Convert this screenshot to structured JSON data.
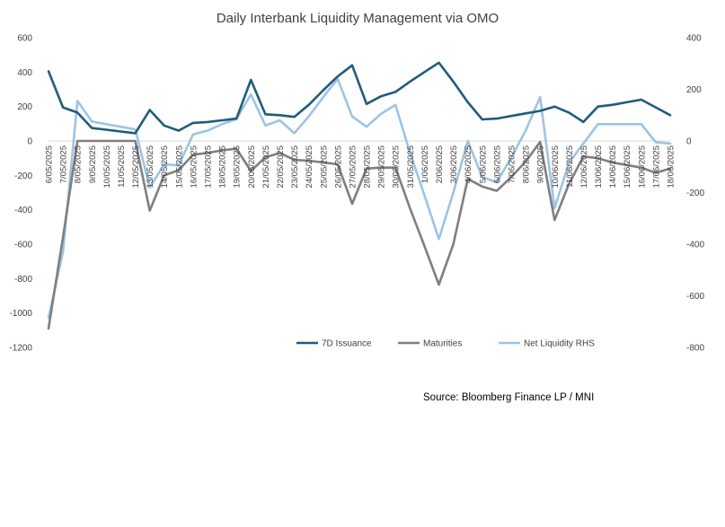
{
  "chart_data": {
    "type": "line",
    "title": "Daily Interbank Liquidity Management via OMO",
    "source": "Source: Bloomberg Finance LP / MNI",
    "categories": [
      "6/05/2025",
      "7/05/2025",
      "8/05/2025",
      "9/05/2025",
      "10/05/2025",
      "11/05/2025",
      "12/05/2025",
      "13/05/2025",
      "14/05/2025",
      "15/05/2025",
      "16/05/2025",
      "17/05/2025",
      "18/05/2025",
      "19/05/2025",
      "20/05/2025",
      "21/05/2025",
      "22/05/2025",
      "23/05/2025",
      "24/05/2025",
      "25/05/2025",
      "26/05/2025",
      "27/05/2025",
      "28/05/2025",
      "29/05/2025",
      "30/05/2025",
      "31/05/2025",
      "1/06/2025",
      "2/06/2025",
      "3/06/2025",
      "4/06/2025",
      "5/06/2025",
      "6/06/2025",
      "7/06/2025",
      "8/06/2025",
      "9/06/2025",
      "10/06/2025",
      "11/06/2025",
      "12/06/2025",
      "13/06/2025",
      "14/06/2025",
      "15/06/2025",
      "16/06/2025",
      "17/06/2025",
      "18/06/2025"
    ],
    "left_axis": {
      "min": -1200,
      "max": 600,
      "ticks": [
        600,
        400,
        200,
        0,
        -200,
        -400,
        -600,
        -800,
        -1000,
        -1200
      ]
    },
    "right_axis": {
      "min": -800,
      "max": 400,
      "ticks": [
        400,
        200,
        0,
        -200,
        -400,
        -600,
        -800
      ]
    },
    "legend_position": "bottom",
    "series": [
      {
        "name": "7D Issuance",
        "axis": "left",
        "color": "#1f5c7d",
        "values": [
          405,
          195,
          165,
          75,
          65,
          55,
          45,
          180,
          90,
          60,
          105,
          110,
          120,
          130,
          355,
          155,
          150,
          140,
          210,
          295,
          375,
          440,
          215,
          260,
          285,
          345,
          400,
          455,
          345,
          225,
          125,
          130,
          145,
          160,
          175,
          200,
          165,
          110,
          200,
          210,
          225,
          240,
          195,
          150
        ]
      },
      {
        "name": "Maturities",
        "axis": "left",
        "color": "#7f7f7f",
        "values": [
          -1090,
          -560,
          0,
          0,
          0,
          0,
          0,
          -405,
          -200,
          -170,
          -80,
          -70,
          -55,
          -45,
          -175,
          -95,
          -70,
          -110,
          -115,
          -125,
          -135,
          -365,
          -160,
          -155,
          -155,
          -390,
          -610,
          -835,
          -600,
          -220,
          -265,
          -290,
          -210,
          -120,
          -5,
          -460,
          -250,
          -90,
          -100,
          -125,
          -140,
          -155,
          -185,
          -160
        ]
      },
      {
        "name": "Net Liquidity RHS",
        "axis": "right",
        "color": "#9dc3e6",
        "values": [
          -685,
          -430,
          155,
          75,
          65,
          55,
          45,
          -180,
          -90,
          -95,
          25,
          40,
          65,
          85,
          180,
          60,
          80,
          30,
          95,
          170,
          240,
          95,
          55,
          105,
          140,
          -45,
          -210,
          -380,
          -200,
          0,
          -140,
          -160,
          -65,
          40,
          170,
          -260,
          -85,
          -10,
          65,
          65,
          65,
          65,
          -5,
          -10
        ]
      }
    ]
  }
}
